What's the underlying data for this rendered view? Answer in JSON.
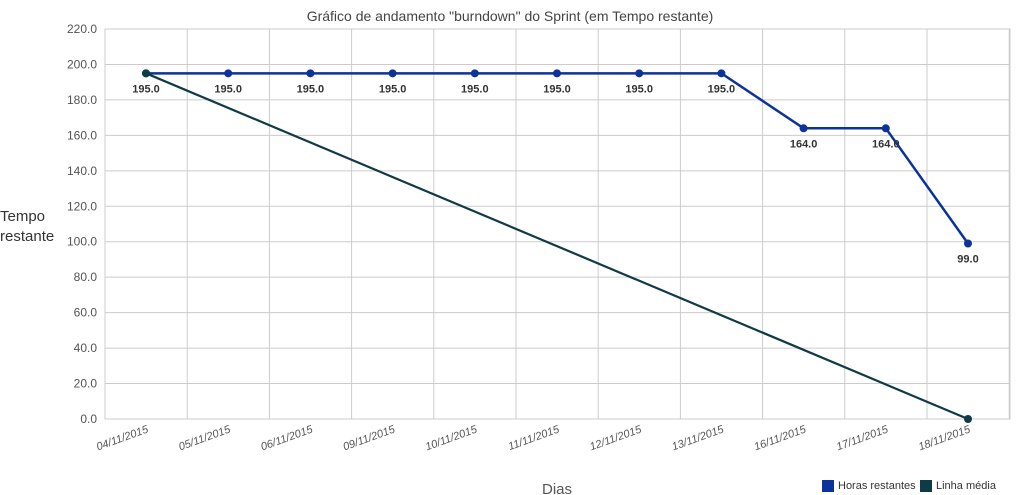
{
  "chart_data": {
    "type": "line",
    "title": "Gráfico de andamento \"burndown\" do Sprint (em Tempo restante)",
    "xlabel": "Dias",
    "ylabel_lines": [
      "Tempo",
      "restante"
    ],
    "categories": [
      "04/11/2015",
      "05/11/2015",
      "06/11/2015",
      "09/11/2015",
      "10/11/2015",
      "11/11/2015",
      "12/11/2015",
      "13/11/2015",
      "16/11/2015",
      "17/11/2015",
      "18/11/2015"
    ],
    "yticks": [
      "0.0",
      "20.0",
      "40.0",
      "60.0",
      "80.0",
      "100.0",
      "120.0",
      "140.0",
      "160.0",
      "180.0",
      "200.0",
      "220.0"
    ],
    "ylim": [
      0,
      220
    ],
    "grid": true,
    "legend_position": "bottom-right",
    "series": [
      {
        "name": "Horas restantes",
        "color": "#0b3399",
        "values": [
          195.0,
          195.0,
          195.0,
          195.0,
          195.0,
          195.0,
          195.0,
          195.0,
          164.0,
          164.0,
          99.0
        ],
        "labels": [
          "195.0",
          "195.0",
          "195.0",
          "195.0",
          "195.0",
          "195.0",
          "195.0",
          "195.0",
          "164.0",
          "164.0",
          "99.0"
        ]
      },
      {
        "name": "Linha média",
        "color": "#0f3b46",
        "values": [
          195.0,
          null,
          null,
          null,
          null,
          null,
          null,
          null,
          null,
          null,
          0.0
        ]
      }
    ]
  }
}
